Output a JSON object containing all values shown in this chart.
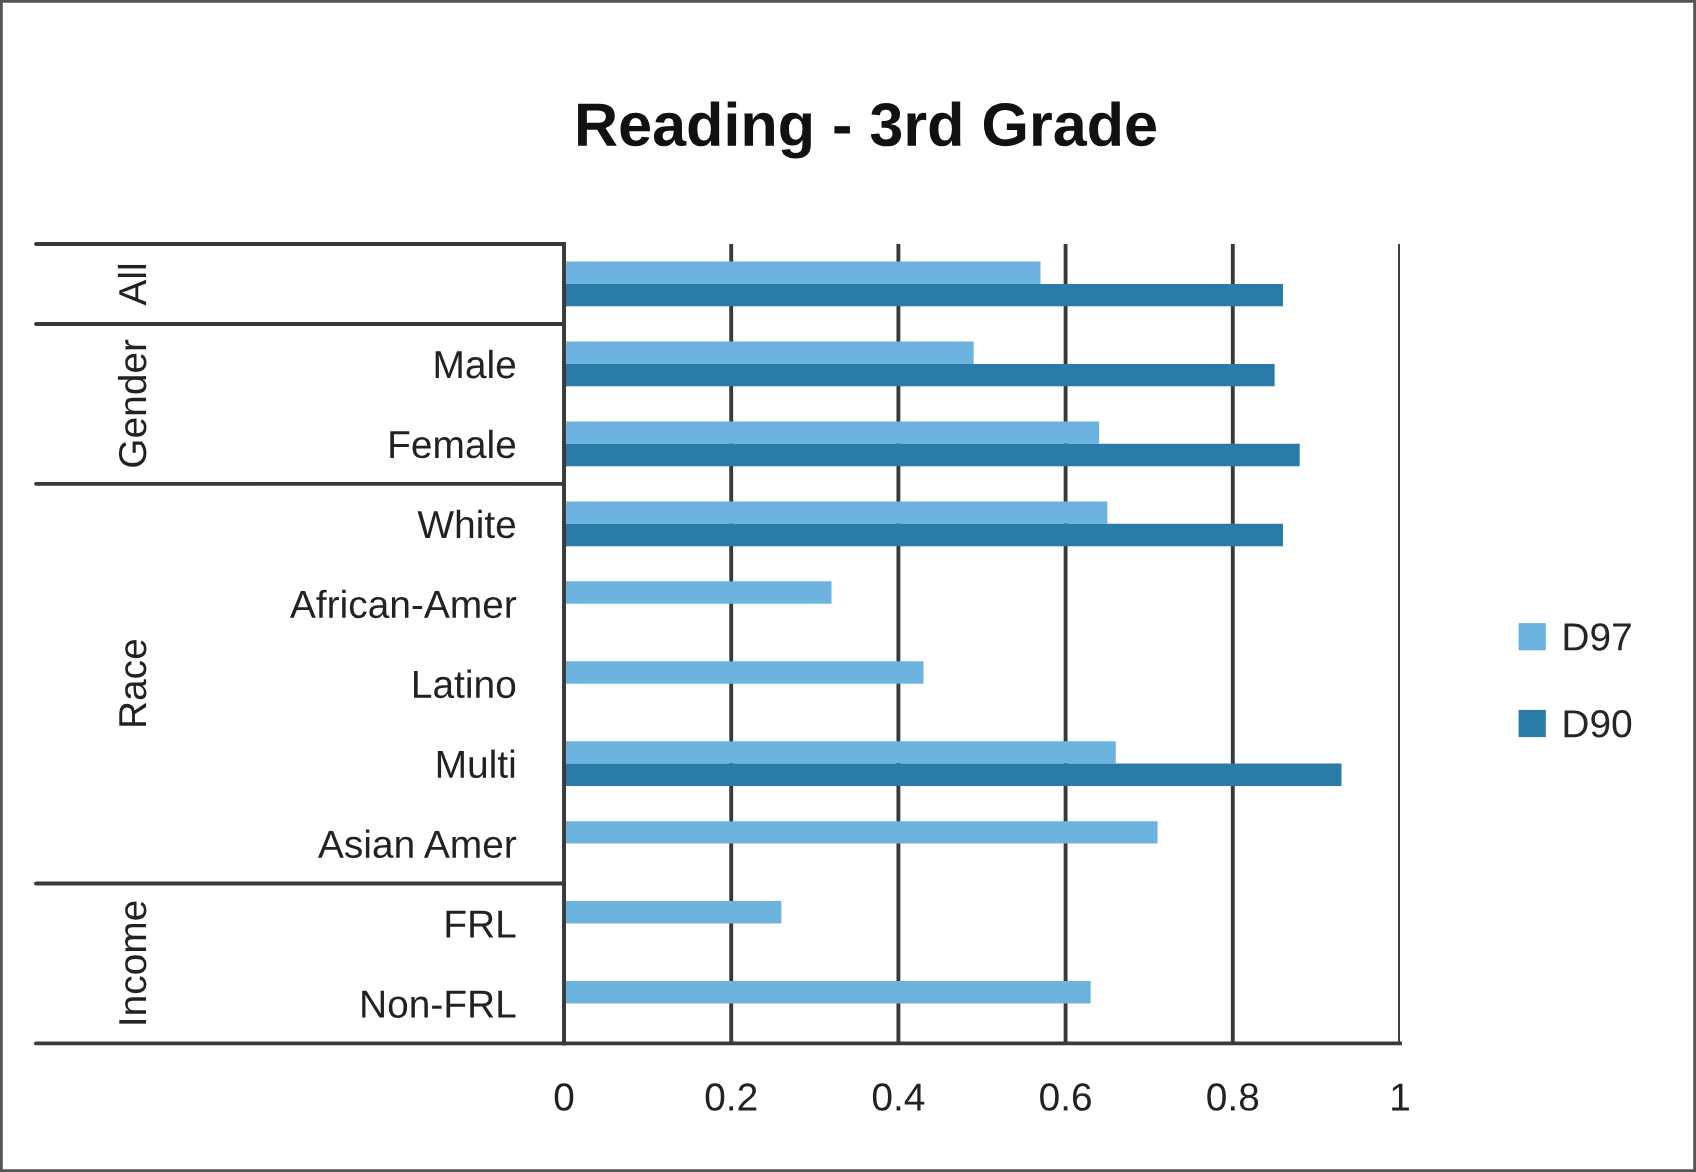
{
  "chart_data": {
    "type": "bar",
    "orientation": "horizontal",
    "title": "Reading - 3rd Grade",
    "categories": [
      null,
      "Male",
      "Female",
      "White",
      "African-Amer",
      "Latino",
      "Multi",
      "Asian Amer",
      "FRL",
      "Non-FRL"
    ],
    "series": [
      {
        "name": "D97",
        "color": "#6cb4df",
        "values": [
          0.57,
          0.49,
          0.64,
          0.65,
          0.32,
          0.43,
          0.66,
          0.71,
          0.26,
          0.63
        ]
      },
      {
        "name": "D90",
        "color": "#2a7ba7",
        "values": [
          0.86,
          0.85,
          0.88,
          0.86,
          null,
          null,
          0.93,
          null,
          null,
          null
        ]
      }
    ],
    "xlim": [
      0,
      1
    ],
    "xticks": [
      0,
      0.2,
      0.4,
      0.6,
      0.8,
      1
    ],
    "grid": "x",
    "legend": "right",
    "annotations": [
      "All",
      "Gender",
      "Race",
      "Income"
    ]
  }
}
